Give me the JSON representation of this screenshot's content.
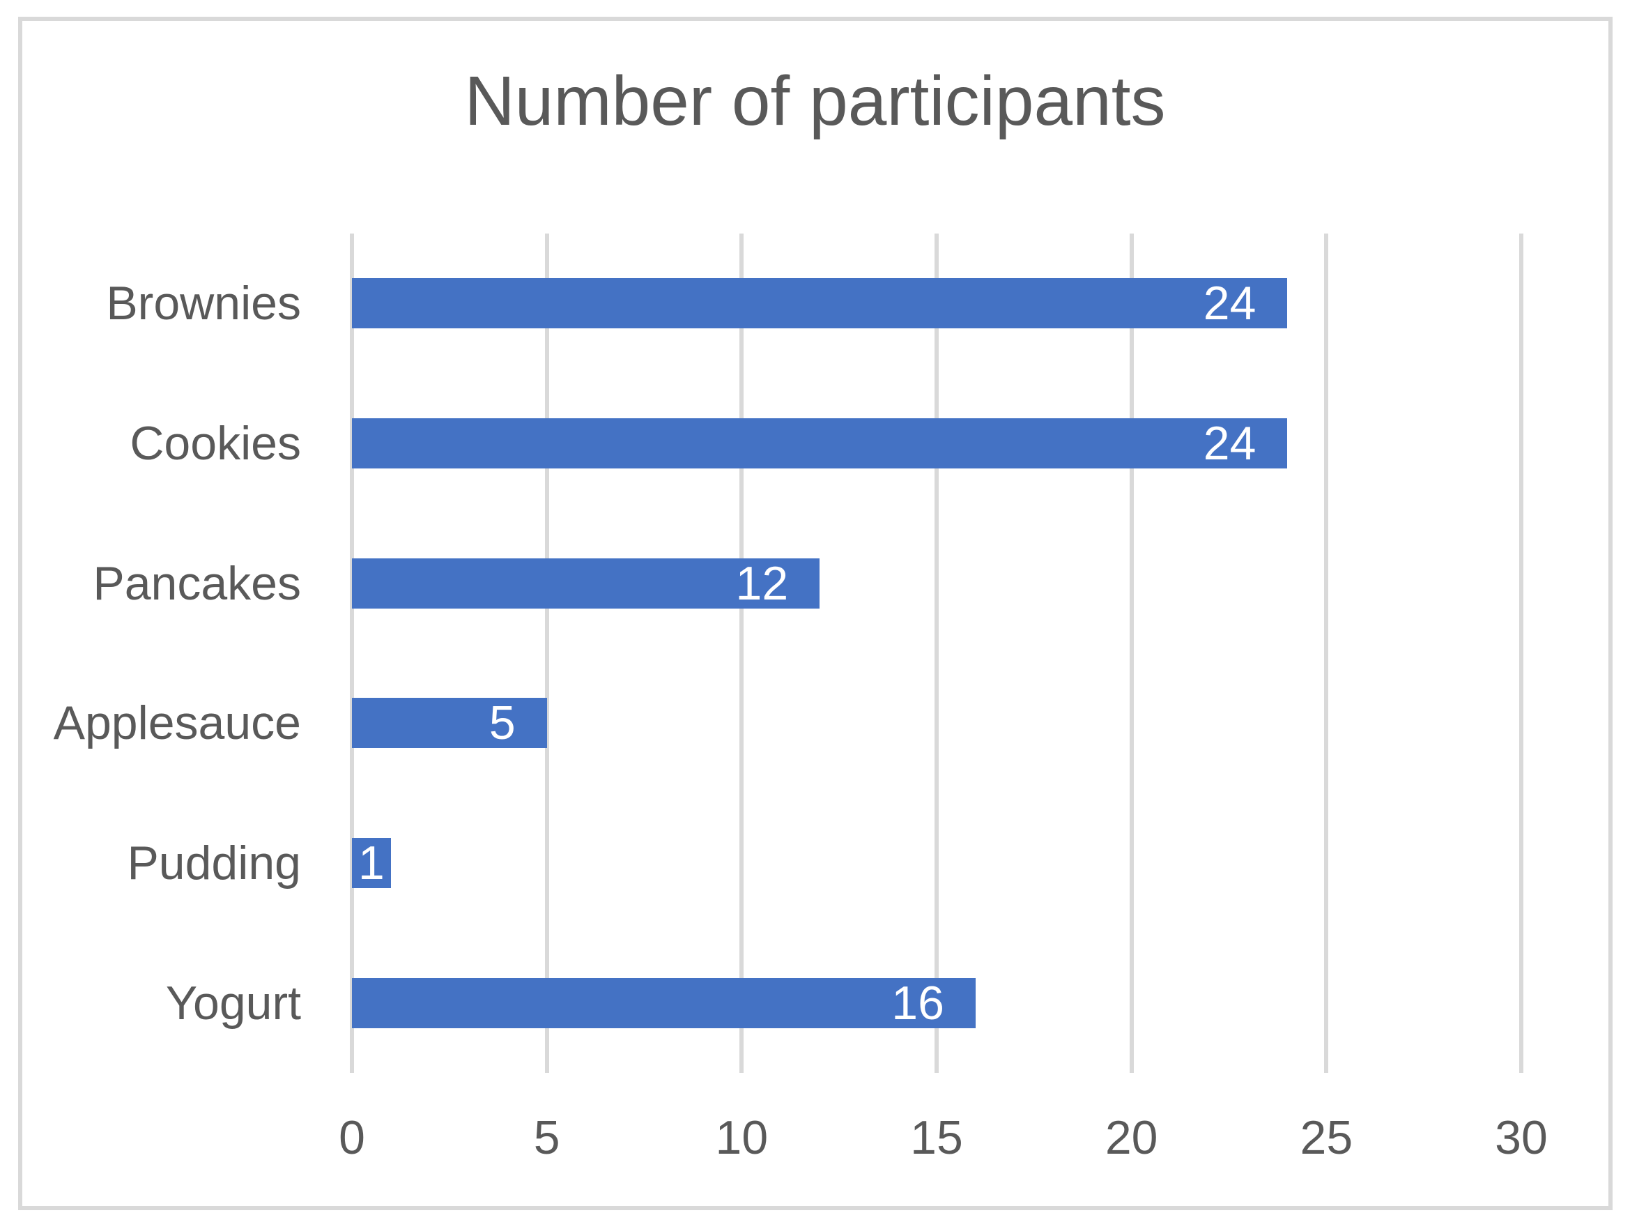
{
  "chart_data": {
    "type": "bar",
    "orientation": "horizontal",
    "title": "Number of participants",
    "categories": [
      "Brownies",
      "Cookies",
      "Pancakes",
      "Applesauce",
      "Pudding",
      "Yogurt"
    ],
    "values": [
      24,
      24,
      12,
      5,
      1,
      16
    ],
    "xlabel": "",
    "ylabel": "",
    "xlim": [
      0,
      30
    ],
    "x_ticks": [
      0,
      5,
      10,
      15,
      20,
      25,
      30
    ],
    "grid": true,
    "legend": false,
    "data_labels": "inside-end",
    "colors": {
      "bar": "#4472C4",
      "text": "#595959",
      "gridline": "#D9D9D9",
      "value_label": "#FFFFFF",
      "frame_border": "#D9D9D9",
      "background": "#FFFFFF"
    }
  }
}
